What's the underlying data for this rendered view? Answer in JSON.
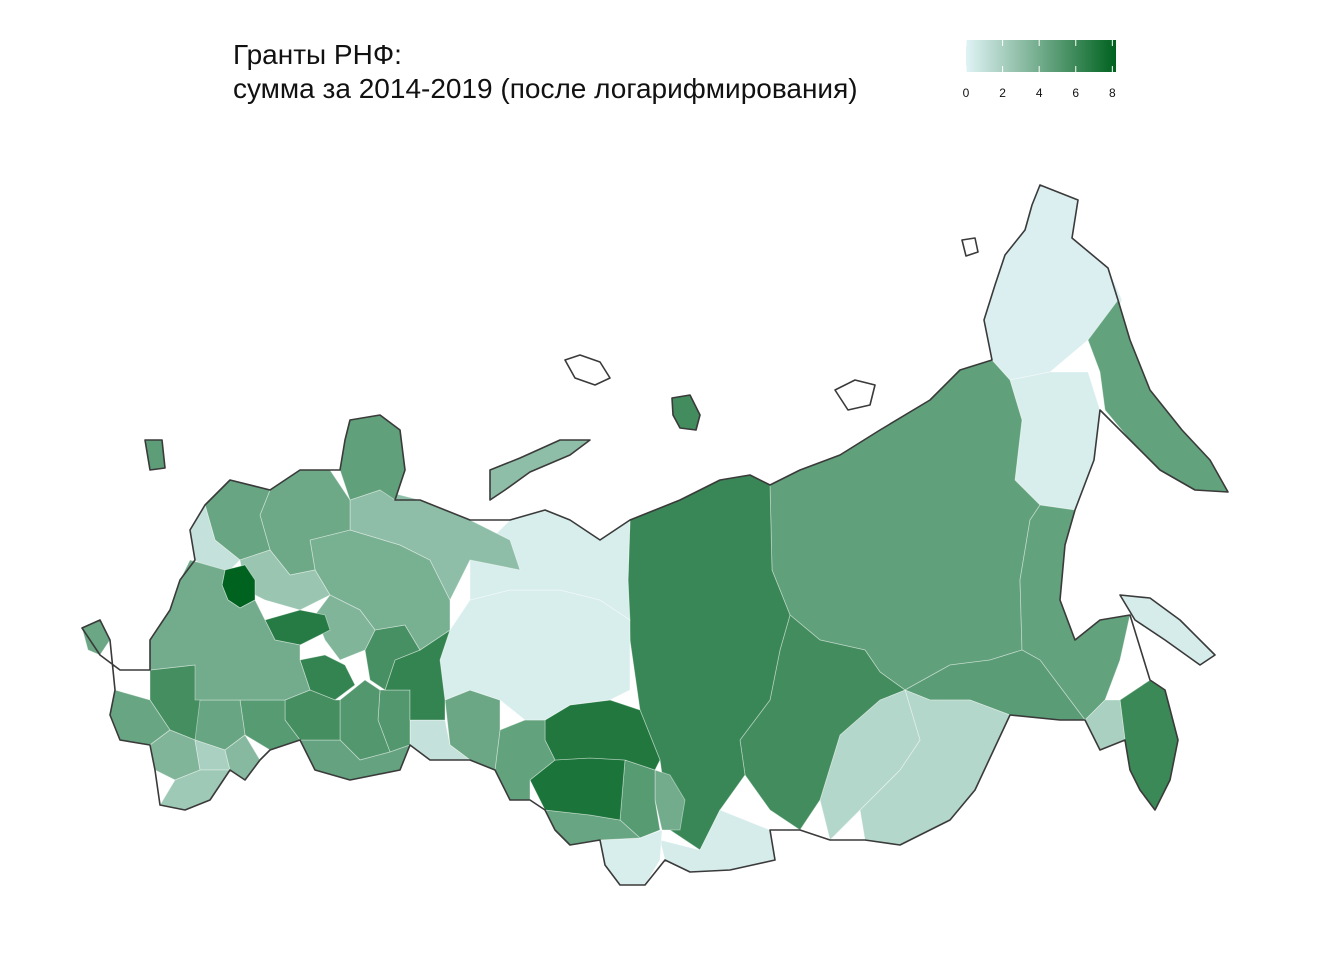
{
  "title": {
    "line1": "Гранты РНФ:",
    "line2": "сумма за 2014-2019 (после логарифмирования)"
  },
  "legend": {
    "min": 0,
    "max": 8.2,
    "ticks": [
      "0",
      "2",
      "4",
      "6",
      "8"
    ],
    "tick_values": [
      0,
      2,
      4,
      6,
      8
    ],
    "color_low": "#e0f3f5",
    "color_high": "#00621f"
  },
  "colors": {
    "coastline": "#3a3a3a",
    "background": "#ffffff"
  },
  "regions": [
    {
      "id": "chukotka",
      "value": 0.2
    },
    {
      "id": "magadan",
      "value": 0.3
    },
    {
      "id": "kamchatka",
      "value": 4.6
    },
    {
      "id": "sakha",
      "value": 4.7
    },
    {
      "id": "khabarovsk",
      "value": 4.6
    },
    {
      "id": "sakhalin",
      "value": 0.4
    },
    {
      "id": "primorye",
      "value": 6.0
    },
    {
      "id": "amur",
      "value": 4.9
    },
    {
      "id": "jewish-ao",
      "value": 2.0
    },
    {
      "id": "zabaykalsky",
      "value": 1.6
    },
    {
      "id": "buryatia",
      "value": 1.6
    },
    {
      "id": "irkutsk",
      "value": 5.8
    },
    {
      "id": "krasnoyarsk",
      "value": 6.1
    },
    {
      "id": "tuva",
      "value": 0.4
    },
    {
      "id": "khakassia",
      "value": 4.0
    },
    {
      "id": "kemerovo",
      "value": 5.0
    },
    {
      "id": "altai-republic",
      "value": 0.3
    },
    {
      "id": "altai-krai",
      "value": 4.4
    },
    {
      "id": "novosibirsk",
      "value": 7.2
    },
    {
      "id": "tomsk",
      "value": 7.0
    },
    {
      "id": "omsk",
      "value": 4.6
    },
    {
      "id": "tyumen",
      "value": 4.3
    },
    {
      "id": "khmao",
      "value": 0.3
    },
    {
      "id": "yamalo-nenets",
      "value": 0.3
    },
    {
      "id": "kurgan",
      "value": 1.0
    },
    {
      "id": "chelyabinsk",
      "value": 5.2
    },
    {
      "id": "sverdlovsk",
      "value": 6.3
    },
    {
      "id": "perm",
      "value": 5.6
    },
    {
      "id": "bashkortostan",
      "value": 5.2
    },
    {
      "id": "orenburg",
      "value": 4.5
    },
    {
      "id": "komi",
      "value": 3.8
    },
    {
      "id": "nenets-ao",
      "value": 3.0
    },
    {
      "id": "arkhangelsk",
      "value": 4.2
    },
    {
      "id": "murmansk",
      "value": 4.7
    },
    {
      "id": "karelia",
      "value": 4.4
    },
    {
      "id": "leningrad",
      "value": 1.0
    },
    {
      "id": "vologda",
      "value": 2.6
    },
    {
      "id": "kirov",
      "value": 3.5
    },
    {
      "id": "tatarstan",
      "value": 6.3
    },
    {
      "id": "samara",
      "value": 5.7
    },
    {
      "id": "saratov",
      "value": 5.0
    },
    {
      "id": "volgograd",
      "value": 4.4
    },
    {
      "id": "rostov",
      "value": 5.7
    },
    {
      "id": "krasnodar",
      "value": 4.4
    },
    {
      "id": "stavropol",
      "value": 3.5
    },
    {
      "id": "dagestan",
      "value": 2.4
    },
    {
      "id": "astrakhan",
      "value": 3.3
    },
    {
      "id": "kalmykia",
      "value": 2.0
    },
    {
      "id": "crimea",
      "value": 4.3
    },
    {
      "id": "moscow",
      "value": 8.2
    },
    {
      "id": "nizhny-novgorod",
      "value": 6.8
    },
    {
      "id": "kaliningrad",
      "value": 4.8
    },
    {
      "id": "novaya-zemlya",
      "value": 3.0
    },
    {
      "id": "severnaya-zemlya",
      "value": 5.8
    }
  ]
}
